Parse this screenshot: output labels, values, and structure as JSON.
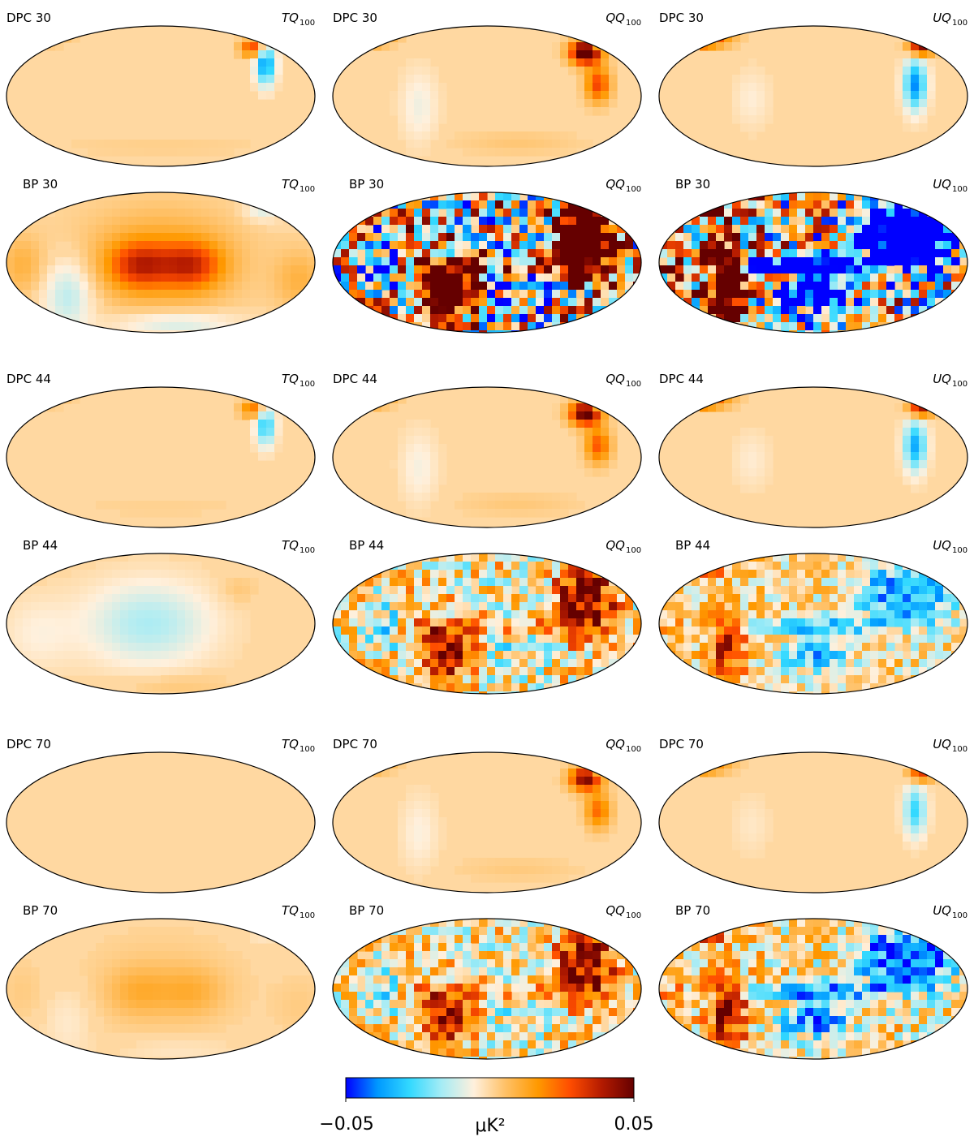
{
  "figure": {
    "rows": [
      {
        "group": "30",
        "panels": [
          {
            "label": "DPC 30",
            "component": "TQ",
            "subscript": "100",
            "pattern": "dpc_t",
            "amp": 0.8
          },
          {
            "label": "DPC 30",
            "component": "QQ",
            "subscript": "100",
            "pattern": "dpc_q",
            "amp": 1.0
          },
          {
            "label": "DPC 30",
            "component": "UQ",
            "subscript": "100",
            "pattern": "dpc_u",
            "amp": 1.0
          }
        ]
      },
      {
        "group": "30",
        "panels": [
          {
            "label": "BP 30",
            "component": "TQ",
            "subscript": "100",
            "pattern": "bp_t",
            "amp": 0.6
          },
          {
            "label": "BP 30",
            "component": "QQ",
            "subscript": "100",
            "pattern": "bp_q",
            "amp": 1.6
          },
          {
            "label": "BP 30",
            "component": "UQ",
            "subscript": "100",
            "pattern": "bp_u",
            "amp": 1.6
          }
        ]
      },
      {
        "group": "44",
        "panels": [
          {
            "label": "DPC 44",
            "component": "TQ",
            "subscript": "100",
            "pattern": "dpc_t",
            "amp": 0.6
          },
          {
            "label": "DPC 44",
            "component": "QQ",
            "subscript": "100",
            "pattern": "dpc_q",
            "amp": 0.9
          },
          {
            "label": "DPC 44",
            "component": "UQ",
            "subscript": "100",
            "pattern": "dpc_u",
            "amp": 0.9
          }
        ]
      },
      {
        "group": "44",
        "panels": [
          {
            "label": "BP 44",
            "component": "TQ",
            "subscript": "100",
            "pattern": "bp_t44",
            "amp": 0.35
          },
          {
            "label": "BP 44",
            "component": "QQ",
            "subscript": "100",
            "pattern": "bp_q",
            "amp": 0.75
          },
          {
            "label": "BP 44",
            "component": "UQ",
            "subscript": "100",
            "pattern": "bp_u",
            "amp": 0.55
          }
        ]
      },
      {
        "group": "70",
        "panels": [
          {
            "label": "DPC 70",
            "component": "TQ",
            "subscript": "100",
            "pattern": "flat",
            "amp": 0.0
          },
          {
            "label": "DPC 70",
            "component": "QQ",
            "subscript": "100",
            "pattern": "dpc_q",
            "amp": 0.8
          },
          {
            "label": "DPC 70",
            "component": "UQ",
            "subscript": "100",
            "pattern": "dpc_u",
            "amp": 0.7
          }
        ]
      },
      {
        "group": "70",
        "panels": [
          {
            "label": "BP 70",
            "component": "TQ",
            "subscript": "100",
            "pattern": "bp_t",
            "amp": 0.18
          },
          {
            "label": "BP 70",
            "component": "QQ",
            "subscript": "100",
            "pattern": "bp_q",
            "amp": 0.7
          },
          {
            "label": "BP 70",
            "component": "UQ",
            "subscript": "100",
            "pattern": "bp_u",
            "amp": 0.7
          }
        ]
      }
    ]
  },
  "colorbar": {
    "min_label": "−0.05",
    "max_label": "0.05",
    "unit_label": "μK²",
    "min": -0.05,
    "max": 0.05,
    "colors": [
      "#0000ff",
      "#0099ff",
      "#33d9ff",
      "#a6ecf5",
      "#fff0dc",
      "#ffc065",
      "#ff9900",
      "#ff4d00",
      "#b31a00",
      "#650000"
    ]
  }
}
